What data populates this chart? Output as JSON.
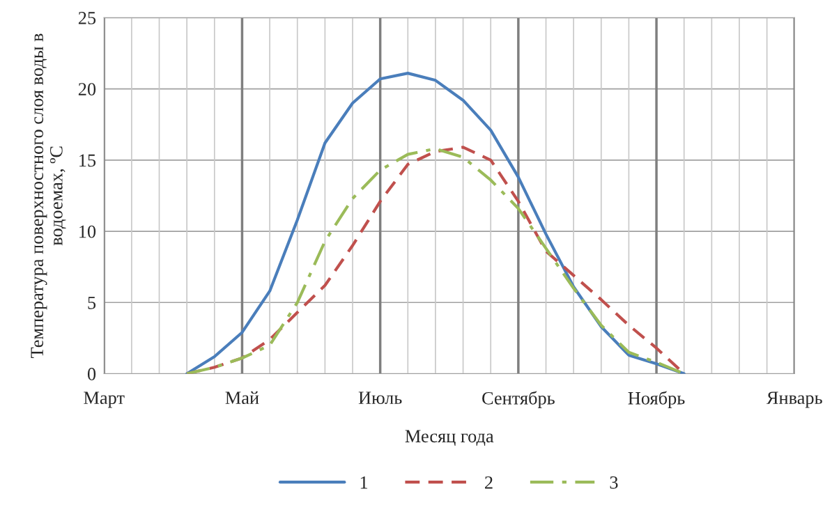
{
  "chart_data": {
    "type": "line",
    "xlabel": "Месяц года",
    "ylabel": "Температура поверхностного слоя воды в\nводоемах, ºC",
    "categories": [
      "Март",
      null,
      null,
      null,
      null,
      "Май",
      null,
      null,
      null,
      null,
      "Июль",
      null,
      null,
      null,
      null,
      "Сентябрь",
      null,
      null,
      null,
      null,
      "Ноябрь",
      null,
      null,
      null,
      null,
      "Январь"
    ],
    "ylim": [
      0,
      25
    ],
    "yticks": [
      0,
      5,
      10,
      15,
      20,
      25
    ],
    "grid": true,
    "legend": "bottom",
    "series": [
      {
        "name": "1",
        "color": "#4a7ebb",
        "line_style": "solid",
        "values": [
          null,
          null,
          null,
          0,
          1.2,
          2.9,
          5.8,
          10.8,
          16.2,
          19.0,
          20.7,
          21.1,
          20.6,
          19.2,
          17.1,
          13.8,
          9.8,
          6.1,
          3.3,
          1.3,
          0.7,
          0,
          null,
          null,
          null,
          null
        ]
      },
      {
        "name": "2",
        "color": "#c0504d",
        "line_style": "dashed",
        "values": [
          null,
          null,
          null,
          0,
          0.45,
          1.1,
          2.4,
          4.3,
          6.2,
          9.0,
          12.1,
          14.7,
          15.6,
          15.9,
          15.0,
          12.1,
          8.6,
          6.9,
          5.2,
          3.4,
          1.8,
          0,
          null,
          null,
          null,
          null
        ]
      },
      {
        "name": "3",
        "color": "#9bbb59",
        "line_style": "dashdot",
        "values": [
          null,
          null,
          null,
          0,
          0.45,
          1.1,
          2.0,
          5.0,
          9.3,
          12.3,
          14.3,
          15.4,
          15.8,
          15.2,
          13.6,
          11.6,
          8.8,
          6.0,
          3.4,
          1.5,
          0.8,
          0,
          null,
          null,
          null,
          null
        ]
      }
    ]
  }
}
